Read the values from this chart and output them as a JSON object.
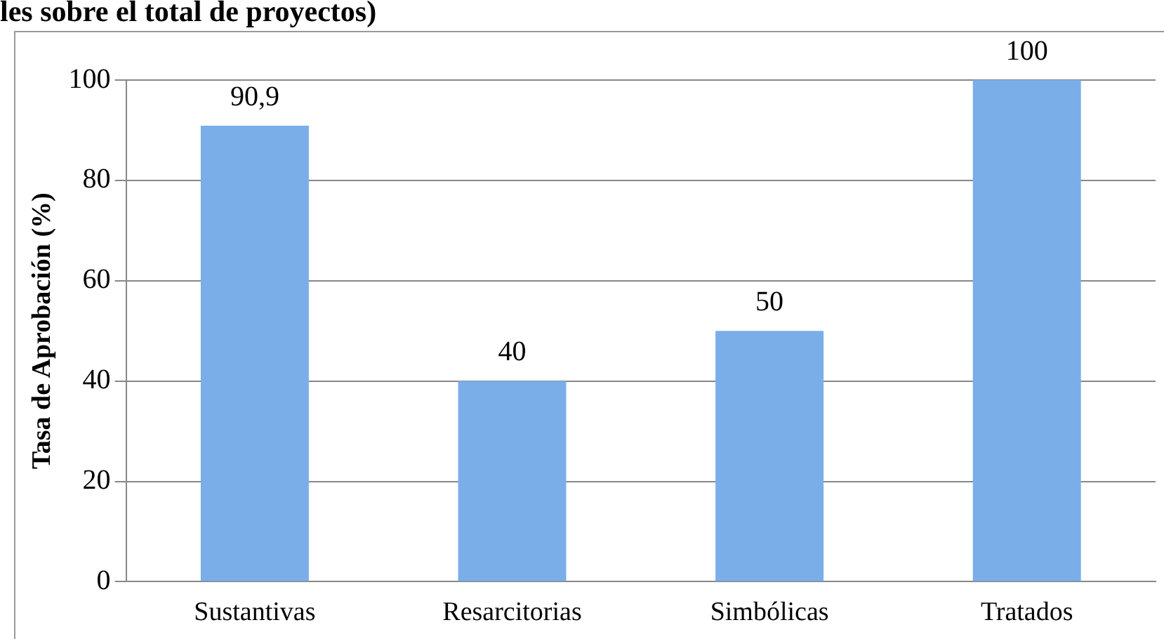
{
  "chart_data": {
    "type": "bar",
    "title": "les sobre el total de proyectos)",
    "ylabel": "Tasa de Aprobación (%)",
    "categories": [
      "Sustantivas",
      "Resarcitorias",
      "Simbólicas",
      "Tratados"
    ],
    "values": [
      90.9,
      40,
      50,
      100
    ],
    "value_labels": [
      "90,9",
      "40",
      "50",
      "100"
    ],
    "color": "#7aaee8",
    "ylim": [
      0,
      100
    ],
    "yticks": [
      0,
      20,
      40,
      60,
      80,
      100
    ],
    "grid": "y",
    "legend": false
  }
}
